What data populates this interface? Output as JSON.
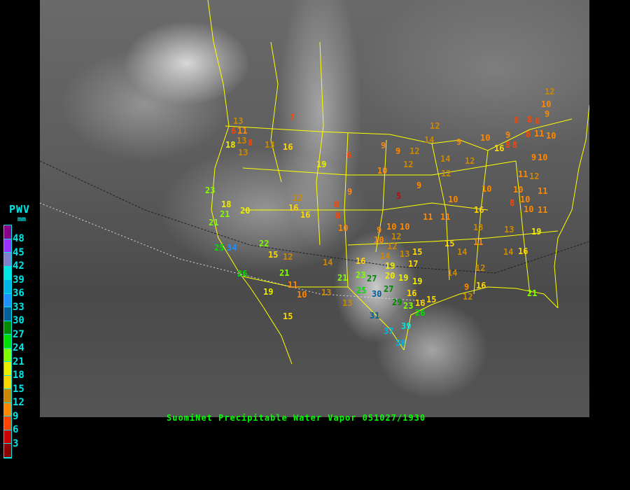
{
  "caption": "SuomiNet Precipitable Water Vapor 051027/1930",
  "legend": {
    "title": "PWV",
    "unit": "mm",
    "ticks": [
      "48",
      "45",
      "42",
      "39",
      "36",
      "33",
      "30",
      "27",
      "24",
      "21",
      "18",
      "15",
      "12",
      "9",
      "6",
      "3"
    ],
    "bin_colors_top_to_bottom": [
      "#8b008b",
      "#9b30ff",
      "#8080d0",
      "#00e6e6",
      "#00b4e6",
      "#1e90ff",
      "#005f99",
      "#008800",
      "#00dd00",
      "#80ff00",
      "#eeee00",
      "#ffd700",
      "#cc8800",
      "#ff8800",
      "#ff4400",
      "#cc0000",
      "#8b0000"
    ]
  },
  "map": {
    "border_color": "#ffff00"
  },
  "stations": [
    13,
    11,
    6,
    13,
    18,
    8,
    13,
    13,
    16,
    7,
    19,
    6,
    9,
    23,
    18,
    21,
    20,
    21,
    12,
    16,
    16,
    8,
    8,
    10,
    9,
    9,
    12,
    12,
    14,
    12,
    10,
    9,
    5,
    11,
    11,
    10,
    12,
    14,
    12,
    10,
    9,
    16,
    8,
    8,
    9,
    8,
    8,
    6,
    8,
    11,
    10,
    12,
    10,
    9,
    10,
    9,
    10,
    8,
    10,
    16,
    11,
    12,
    11,
    10,
    11,
    10,
    25,
    34,
    22,
    15,
    12,
    26,
    21,
    11,
    19,
    10,
    13,
    15,
    14,
    21,
    13,
    16,
    23,
    27,
    25,
    30,
    27,
    29,
    23,
    16,
    16,
    26,
    31,
    37,
    39,
    38,
    15,
    9,
    10,
    10,
    10,
    12,
    12,
    14,
    13,
    15,
    19,
    20,
    17,
    19,
    19,
    15,
    14,
    11,
    13,
    13,
    19,
    14,
    16,
    12,
    14,
    9,
    12,
    16,
    21
  ]
}
